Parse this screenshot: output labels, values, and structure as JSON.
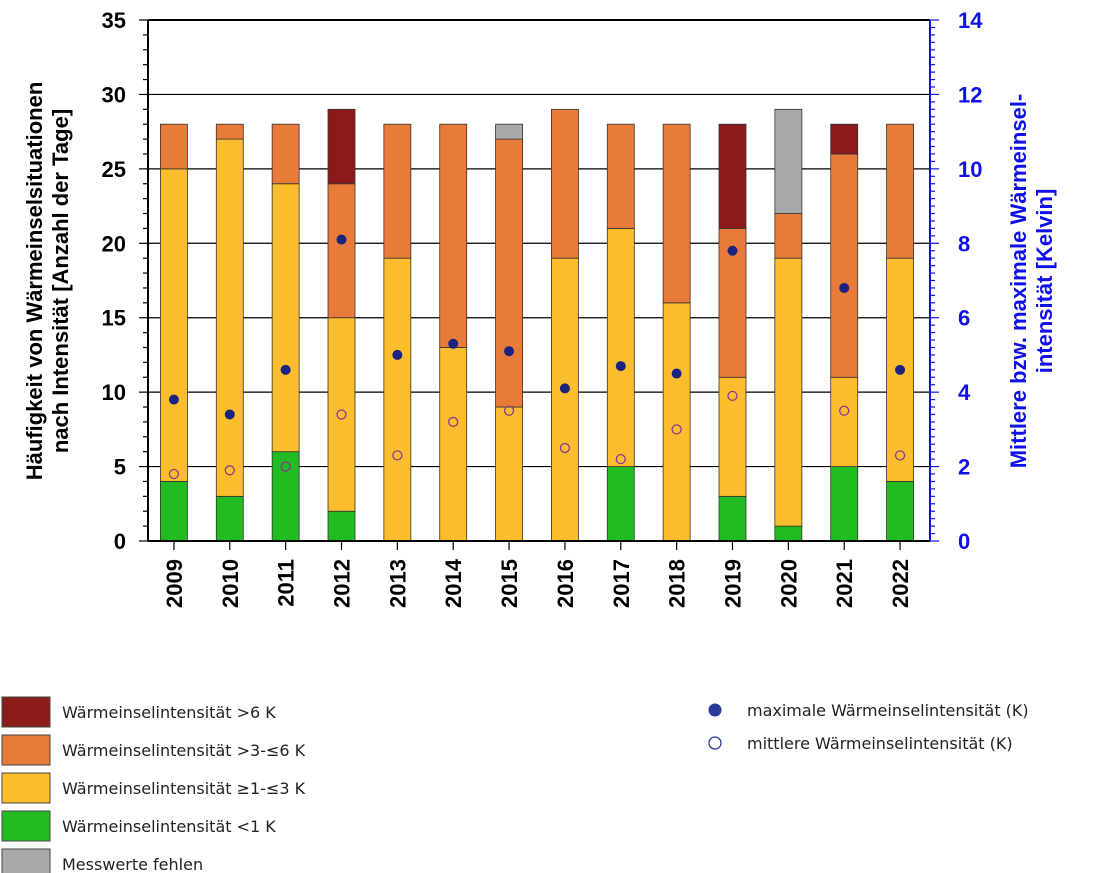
{
  "chart_data": {
    "type": "bar",
    "stacked": true,
    "grid": true,
    "categories": [
      "2009",
      "2010",
      "2011",
      "2012",
      "2013",
      "2014",
      "2015",
      "2016",
      "2017",
      "2018",
      "2019",
      "2020",
      "2021",
      "2022"
    ],
    "ylabel_left": [
      "Häufigkeit von Wärmeinselsituationen",
      "nach Intensität [Anzahl der Tage]"
    ],
    "ylabel_right": [
      "Mittlere bzw. maximale Wärmeinsel-",
      "intensität [Kelvin]"
    ],
    "ylim_left": [
      0,
      35
    ],
    "ylim_right": [
      0,
      14
    ],
    "yticks_left": [
      0,
      5,
      10,
      15,
      20,
      25,
      30,
      35
    ],
    "yticks_right": [
      0,
      2,
      4,
      6,
      8,
      10,
      12,
      14
    ],
    "series": [
      {
        "name": "Wärmeinselintensität <1 K",
        "color": "#22bb22",
        "values": [
          4,
          3,
          6,
          2,
          0,
          0,
          0,
          0,
          5,
          0,
          3,
          1,
          5,
          4
        ]
      },
      {
        "name": "Wärmeinselintensität ≥1-≤3 K",
        "color": "#fbbd2d",
        "values": [
          21,
          24,
          18,
          13,
          19,
          13,
          9,
          19,
          16,
          16,
          8,
          18,
          6,
          15
        ]
      },
      {
        "name": "Wärmeinselintensität >3-≤6 K",
        "color": "#e87a3a",
        "values": [
          3,
          1,
          4,
          9,
          9,
          15,
          18,
          10,
          7,
          12,
          10,
          3,
          15,
          9
        ]
      },
      {
        "name": "Wärmeinselintensität >6 K",
        "color": "#8b1a1a",
        "values": [
          0,
          0,
          0,
          5,
          0,
          0,
          0,
          0,
          0,
          0,
          7,
          0,
          2,
          0
        ]
      },
      {
        "name": "Messwerte fehlen",
        "color": "#a9a9a9",
        "values": [
          0,
          0,
          0,
          0,
          0,
          0,
          1,
          0,
          0,
          0,
          0,
          7,
          0,
          0
        ]
      }
    ],
    "points": [
      {
        "name": "maximale Wärmeinselintensität (K)",
        "axis": "right",
        "style": "filled",
        "values": [
          3.8,
          3.4,
          4.6,
          8.1,
          5.0,
          5.3,
          5.1,
          4.1,
          4.7,
          4.5,
          7.8,
          null,
          6.8,
          4.6
        ]
      },
      {
        "name": "mittlere Wärmeinselintensität (K)",
        "axis": "right",
        "style": "open",
        "values": [
          1.8,
          1.9,
          2.0,
          3.4,
          2.3,
          3.2,
          3.5,
          2.5,
          2.2,
          3.0,
          3.9,
          null,
          3.5,
          2.3
        ]
      }
    ]
  },
  "legend_left": [
    {
      "label": "Wärmeinselintensität >6 K",
      "color": "#8b1a1a",
      "icon": "swatch"
    },
    {
      "label": "Wärmeinselintensität >3-≤6 K",
      "color": "#e87a3a",
      "icon": "swatch"
    },
    {
      "label": "Wärmeinselintensität ≥1-≤3 K",
      "color": "#fbbd2d",
      "icon": "swatch"
    },
    {
      "label": "Wärmeinselintensität <1 K",
      "color": "#22bb22",
      "icon": "swatch"
    },
    {
      "label": "Messwerte fehlen",
      "color": "#a9a9a9",
      "icon": "swatch"
    }
  ],
  "legend_right": [
    {
      "label": "maximale Wärmeinselintensität (K)",
      "icon": "filled-circle"
    },
    {
      "label": "mittlere Wärmeinselintensität (K)",
      "icon": "open-circle"
    }
  ],
  "colors": {
    "left_axis": "#000000",
    "right_axis": "#1010e8",
    "filled_dot": "#1a237e",
    "open_dot": "#8b3a8b"
  }
}
